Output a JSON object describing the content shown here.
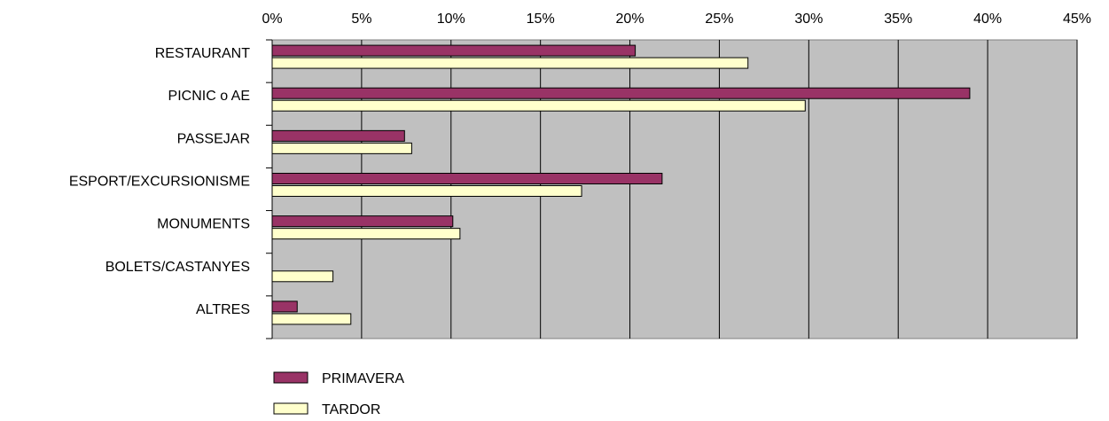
{
  "chart_data": {
    "type": "bar",
    "orientation": "horizontal",
    "categories": [
      "RESTAURANT",
      "PICNIC o AE",
      "PASSEJAR",
      "ESPORT/EXCURSIONISME",
      "MONUMENTS",
      "BOLETS/CASTANYES",
      "ALTRES"
    ],
    "series": [
      {
        "name": "PRIMAVERA",
        "color": "#993366",
        "values": [
          20.3,
          39.0,
          7.4,
          21.8,
          10.1,
          0,
          1.4
        ]
      },
      {
        "name": "TARDOR",
        "color": "#ffffcc",
        "values": [
          26.6,
          29.8,
          7.8,
          17.3,
          10.5,
          3.4,
          4.4
        ]
      }
    ],
    "xlim": [
      0,
      45
    ],
    "xticks": [
      0,
      5,
      10,
      15,
      20,
      25,
      30,
      35,
      40,
      45
    ],
    "tick_labels": [
      "0%",
      "5%",
      "10%",
      "15%",
      "20%",
      "25%",
      "30%",
      "35%",
      "40%",
      "45%"
    ],
    "title": "",
    "xlabel": "",
    "ylabel": "",
    "grid": true,
    "plot_background": "#c0c0c0",
    "axis_position": "top",
    "legend_position": "bottom-left"
  }
}
